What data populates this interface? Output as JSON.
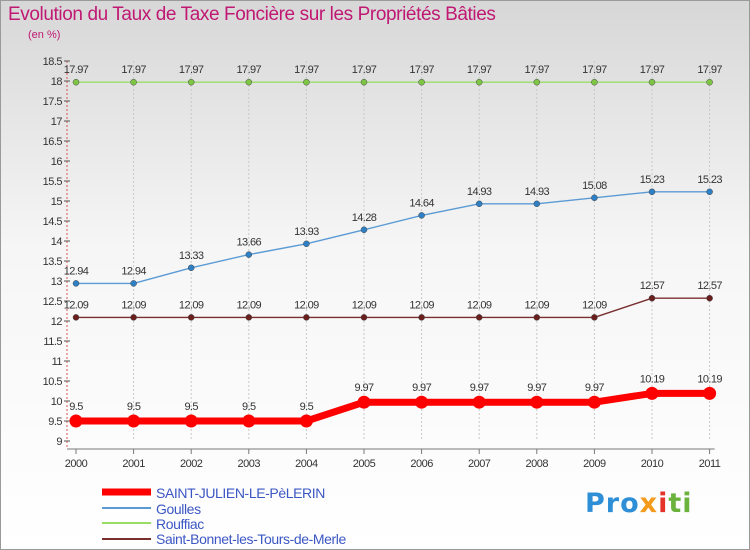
{
  "chart_data": {
    "type": "line",
    "title": "Evolution du Taux de Taxe Foncière sur les Propriétés Bâties",
    "ylabel": "(en %)",
    "xlabel": "",
    "x": [
      "2000",
      "2001",
      "2002",
      "2003",
      "2004",
      "2005",
      "2006",
      "2007",
      "2008",
      "2009",
      "2010",
      "2011"
    ],
    "ylim": [
      9,
      18.5
    ],
    "yticks": [
      "9",
      "9.5",
      "10",
      "10.5",
      "11",
      "11.5",
      "12",
      "12.5",
      "13",
      "13.5",
      "14",
      "14.5",
      "15",
      "15.5",
      "16",
      "16.5",
      "17",
      "17.5",
      "18",
      "18.5"
    ],
    "grid": "dashed vertical",
    "legend_position": "bottom-left",
    "series": [
      {
        "name": "SAINT-JULIEN-LE-PèLERIN",
        "color": "#ff0000",
        "marker_color": "#ff0000",
        "values": [
          9.5,
          9.5,
          9.5,
          9.5,
          9.5,
          9.97,
          9.97,
          9.97,
          9.97,
          9.97,
          10.19,
          10.19
        ],
        "labels": [
          "9.5",
          "9.5",
          "9.5",
          "9.5",
          "9.5",
          "9.97",
          "9.97",
          "9.97",
          "9.97",
          "9.97",
          "10.19",
          "10.19"
        ]
      },
      {
        "name": "Goulles",
        "color": "#5b9bd5",
        "marker_color": "#2f7fc5",
        "values": [
          12.94,
          12.94,
          13.33,
          13.66,
          13.93,
          14.28,
          14.64,
          14.93,
          14.93,
          15.08,
          15.23,
          15.23
        ],
        "labels": [
          "12.94",
          "12.94",
          "13.33",
          "13.66",
          "13.93",
          "14.28",
          "14.64",
          "14.93",
          "14.93",
          "15.08",
          "15.23",
          "15.23"
        ]
      },
      {
        "name": "Rouffiac",
        "color": "#99dd66",
        "marker_color": "#7fc444",
        "values": [
          17.97,
          17.97,
          17.97,
          17.97,
          17.97,
          17.97,
          17.97,
          17.97,
          17.97,
          17.97,
          17.97,
          17.97
        ],
        "labels": [
          "17.97",
          "17.97",
          "17.97",
          "17.97",
          "17.97",
          "17.97",
          "17.97",
          "17.97",
          "17.97",
          "17.97",
          "17.97",
          "17.97"
        ]
      },
      {
        "name": "Saint-Bonnet-les-Tours-de-Merle",
        "color": "#7a2f2f",
        "marker_color": "#6a1f1f",
        "values": [
          12.09,
          12.09,
          12.09,
          12.09,
          12.09,
          12.09,
          12.09,
          12.09,
          12.09,
          12.09,
          12.57,
          12.57
        ],
        "labels": [
          "12.09",
          "12.09",
          "12.09",
          "12.09",
          "12.09",
          "12.09",
          "12.09",
          "12.09",
          "12.09",
          "12.09",
          "12.57",
          "12.57"
        ]
      }
    ]
  },
  "logo": {
    "p1": "Pro",
    "p2": "x",
    "p3": "i",
    "p4": "ti"
  }
}
